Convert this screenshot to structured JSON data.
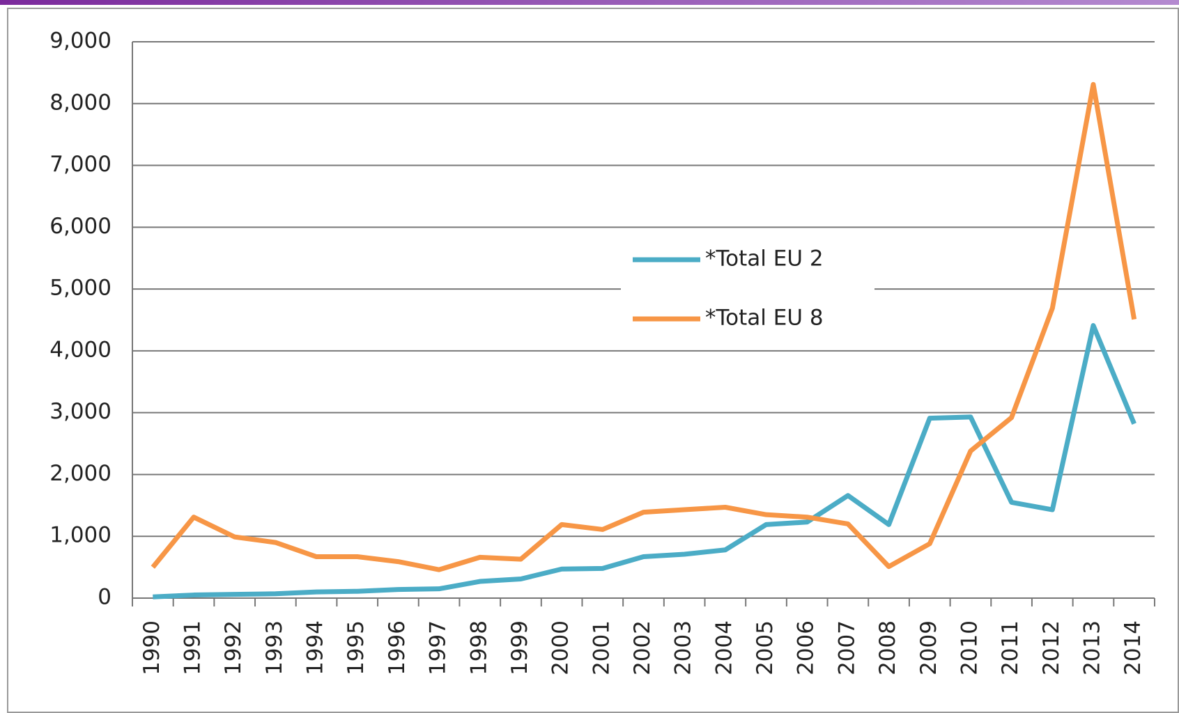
{
  "chart_data": {
    "type": "line",
    "categories": [
      "1990",
      "1991",
      "1992",
      "1993",
      "1994",
      "1995",
      "1996",
      "1997",
      "1998",
      "1999",
      "2000",
      "2001",
      "2002",
      "2003",
      "2004",
      "2005",
      "2006",
      "2007",
      "2008",
      "2009",
      "2010",
      "2011",
      "2012",
      "2013",
      "2014"
    ],
    "series": [
      {
        "name": "*Total EU 2",
        "color": "#4bacc6",
        "values": [
          20,
          50,
          60,
          70,
          100,
          110,
          140,
          150,
          270,
          310,
          470,
          480,
          670,
          710,
          780,
          1190,
          1230,
          1660,
          1190,
          2910,
          2930,
          1550,
          1430,
          4410,
          2820
        ]
      },
      {
        "name": "*Total EU 8",
        "color": "#f79646",
        "values": [
          500,
          1310,
          990,
          900,
          670,
          670,
          590,
          460,
          660,
          630,
          1190,
          1110,
          1390,
          1430,
          1470,
          1350,
          1310,
          1200,
          510,
          880,
          2380,
          2920,
          4690,
          8310,
          4510
        ]
      }
    ],
    "ylim": [
      0,
      9000
    ],
    "yticks": [
      0,
      {
        "value": 1000,
        "label": "1,000"
      },
      {
        "value": 2000,
        "label": "2,000"
      },
      {
        "value": 3000,
        "label": "3,000"
      },
      {
        "value": 4000,
        "label": "4,000"
      },
      {
        "value": 5000,
        "label": "5,000"
      },
      {
        "value": 6000,
        "label": "6,000"
      },
      {
        "value": 7000,
        "label": "7,000"
      },
      {
        "value": 8000,
        "label": "8,000"
      },
      {
        "value": 9000,
        "label": "9,000"
      }
    ],
    "grid": true
  }
}
